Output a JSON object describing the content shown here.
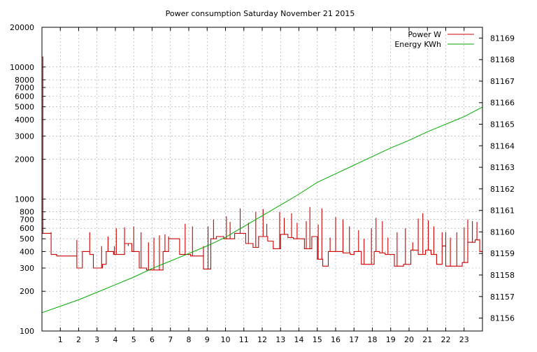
{
  "chart_data": {
    "type": "line",
    "title": "Power consumption Saturday November 21 2015",
    "legend_position": "top-right",
    "grid": true,
    "x": {
      "range": [
        0,
        24
      ],
      "ticks": [
        1,
        2,
        3,
        4,
        5,
        6,
        7,
        8,
        9,
        10,
        11,
        12,
        13,
        14,
        15,
        16,
        17,
        18,
        19,
        20,
        21,
        22,
        23
      ],
      "tick_labels": [
        "1",
        "2",
        "3",
        "4",
        "5",
        "6",
        "7",
        "8",
        "9",
        "10",
        "11",
        "12",
        "13",
        "14",
        "15",
        "16",
        "17",
        "18",
        "19",
        "20",
        "21",
        "22",
        "23"
      ]
    },
    "y_left": {
      "scale": "log",
      "range": [
        100,
        20000
      ],
      "ticks": [
        100,
        200,
        300,
        400,
        500,
        600,
        700,
        800,
        1000,
        2000,
        3000,
        4000,
        5000,
        6000,
        7000,
        8000,
        10000,
        20000
      ],
      "tick_labels": [
        "100",
        "200",
        "300",
        "400",
        "500",
        "600",
        "700",
        "800",
        "1000",
        "2000",
        "3000",
        "4000",
        "5000",
        "6000",
        "7000",
        "8000",
        "10000",
        "20000"
      ]
    },
    "y_right": {
      "scale": "linear",
      "range": [
        81155.4,
        81169.5
      ],
      "ticks": [
        81156,
        81157,
        81158,
        81159,
        81160,
        81161,
        81162,
        81163,
        81164,
        81165,
        81166,
        81167,
        81168,
        81169
      ],
      "tick_labels": [
        "81156",
        "81157",
        "81158",
        "81159",
        "81160",
        "81161",
        "81162",
        "81163",
        "81164",
        "81165",
        "81166",
        "81167",
        "81168",
        "81169"
      ]
    },
    "series": [
      {
        "name": "Power W",
        "color": "#cc0000",
        "axis": "left",
        "base_steps": [
          [
            0,
            550
          ],
          [
            0.5,
            380
          ],
          [
            0.8,
            370
          ],
          [
            1.9,
            300
          ],
          [
            2.2,
            400
          ],
          [
            2.6,
            380
          ],
          [
            2.8,
            300
          ],
          [
            3.3,
            320
          ],
          [
            3.5,
            400
          ],
          [
            3.9,
            380
          ],
          [
            4.5,
            460
          ],
          [
            4.9,
            400
          ],
          [
            5.3,
            300
          ],
          [
            5.7,
            290
          ],
          [
            6.6,
            400
          ],
          [
            6.9,
            500
          ],
          [
            7.5,
            380
          ],
          [
            7.8,
            380
          ],
          [
            8.1,
            370
          ],
          [
            8.8,
            295
          ],
          [
            9.2,
            500
          ],
          [
            9.5,
            520
          ],
          [
            9.9,
            500
          ],
          [
            10.5,
            550
          ],
          [
            11.1,
            460
          ],
          [
            11.5,
            430
          ],
          [
            11.8,
            520
          ],
          [
            12.3,
            480
          ],
          [
            12.6,
            420
          ],
          [
            13.0,
            540
          ],
          [
            13.4,
            510
          ],
          [
            13.7,
            500
          ],
          [
            14.3,
            420
          ],
          [
            14.7,
            520
          ],
          [
            15.0,
            350
          ],
          [
            15.3,
            310
          ],
          [
            15.6,
            400
          ],
          [
            16.4,
            390
          ],
          [
            16.8,
            380
          ],
          [
            17.0,
            400
          ],
          [
            17.4,
            320
          ],
          [
            17.8,
            320
          ],
          [
            18.1,
            400
          ],
          [
            18.4,
            390
          ],
          [
            18.7,
            380
          ],
          [
            19.2,
            310
          ],
          [
            19.4,
            310
          ],
          [
            19.7,
            320
          ],
          [
            20.1,
            410
          ],
          [
            20.5,
            380
          ],
          [
            20.9,
            410
          ],
          [
            21.2,
            380
          ],
          [
            21.5,
            320
          ],
          [
            21.8,
            440
          ],
          [
            22.0,
            310
          ],
          [
            22.4,
            310
          ],
          [
            22.9,
            330
          ],
          [
            23.2,
            470
          ],
          [
            23.6,
            490
          ],
          [
            23.85,
            400
          ],
          [
            24,
            400
          ]
        ],
        "spikes": [
          [
            0.05,
            12000
          ],
          [
            0.5,
            560
          ],
          [
            1.9,
            490
          ],
          [
            2.6,
            560
          ],
          [
            3.25,
            440
          ],
          [
            3.6,
            520
          ],
          [
            3.95,
            440
          ],
          [
            4.05,
            600
          ],
          [
            4.5,
            610
          ],
          [
            4.7,
            440
          ],
          [
            5.0,
            620
          ],
          [
            5.4,
            560
          ],
          [
            5.8,
            470
          ],
          [
            6.1,
            510
          ],
          [
            6.4,
            530
          ],
          [
            6.7,
            540
          ],
          [
            6.9,
            520
          ],
          [
            7.8,
            650
          ],
          [
            8.2,
            620
          ],
          [
            8.8,
            440
          ],
          [
            9.05,
            620
          ],
          [
            9.35,
            700
          ],
          [
            10.05,
            740
          ],
          [
            10.25,
            670
          ],
          [
            10.8,
            850
          ],
          [
            11.25,
            660
          ],
          [
            11.65,
            800
          ],
          [
            12.05,
            840
          ],
          [
            12.25,
            650
          ],
          [
            12.95,
            800
          ],
          [
            13.2,
            720
          ],
          [
            13.6,
            780
          ],
          [
            13.9,
            660
          ],
          [
            14.4,
            680
          ],
          [
            14.6,
            870
          ],
          [
            15.05,
            640
          ],
          [
            15.25,
            850
          ],
          [
            15.7,
            510
          ],
          [
            16.0,
            730
          ],
          [
            16.4,
            700
          ],
          [
            16.75,
            620
          ],
          [
            17.25,
            580
          ],
          [
            17.55,
            500
          ],
          [
            17.95,
            600
          ],
          [
            18.2,
            720
          ],
          [
            18.55,
            680
          ],
          [
            18.85,
            510
          ],
          [
            19.35,
            560
          ],
          [
            19.8,
            600
          ],
          [
            20.2,
            470
          ],
          [
            20.5,
            710
          ],
          [
            20.75,
            780
          ],
          [
            21.05,
            690
          ],
          [
            21.35,
            620
          ],
          [
            21.8,
            560
          ],
          [
            22.0,
            560
          ],
          [
            22.25,
            510
          ],
          [
            22.6,
            560
          ],
          [
            23.0,
            610
          ],
          [
            23.2,
            700
          ],
          [
            23.45,
            680
          ],
          [
            23.7,
            670
          ]
        ]
      },
      {
        "name": "Energy KWh",
        "color": "#00aa00",
        "axis": "right",
        "points": [
          [
            0,
            81156.25
          ],
          [
            1,
            81156.55
          ],
          [
            2,
            81156.85
          ],
          [
            3,
            81157.2
          ],
          [
            4,
            81157.55
          ],
          [
            5,
            81157.9
          ],
          [
            6,
            81158.3
          ],
          [
            7,
            81158.65
          ],
          [
            8,
            81159.0
          ],
          [
            9,
            81159.35
          ],
          [
            10,
            81159.75
          ],
          [
            11,
            81160.25
          ],
          [
            12,
            81160.75
          ],
          [
            13,
            81161.25
          ],
          [
            14,
            81161.75
          ],
          [
            15,
            81162.3
          ],
          [
            16,
            81162.7
          ],
          [
            17,
            81163.1
          ],
          [
            18,
            81163.5
          ],
          [
            19,
            81163.9
          ],
          [
            20,
            81164.25
          ],
          [
            21,
            81164.65
          ],
          [
            22,
            81165.0
          ],
          [
            23,
            81165.35
          ],
          [
            24,
            81165.8
          ]
        ]
      }
    ]
  }
}
